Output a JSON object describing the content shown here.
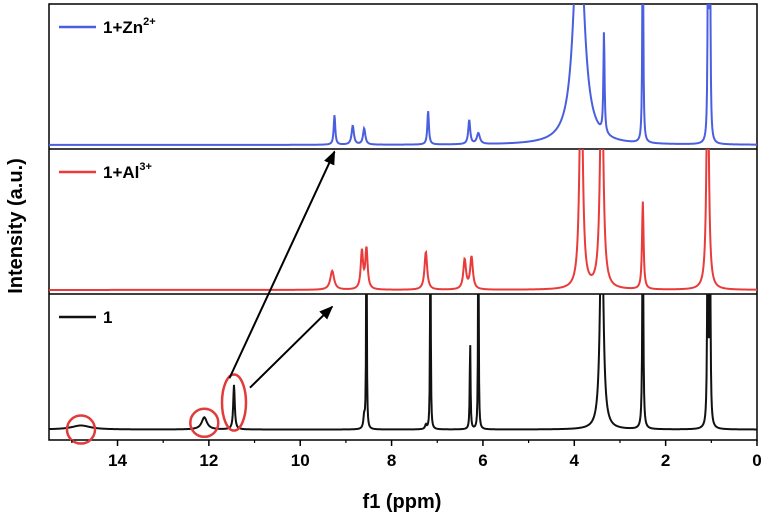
{
  "chart_data": {
    "type": "line",
    "title": "",
    "xlabel": "f1 (ppm)",
    "ylabel": "Intensity (a.u.)",
    "xlim": [
      15.5,
      0
    ],
    "x_reversed": true,
    "x_ticks": [
      14,
      12,
      10,
      8,
      6,
      4,
      2,
      0
    ],
    "x_tick_labels": [
      "14",
      "12",
      "10",
      "8",
      "6",
      "4",
      "2",
      "0"
    ],
    "grid": false,
    "legend_placement": "top-left of each panel",
    "series": [
      {
        "name": "1+Zn2+",
        "label_base": "1+Zn",
        "label_sup": "2+",
        "color": "#4a5fe0",
        "panel": "top",
        "baseline": 0.03,
        "peaks": [
          {
            "ppm": 9.25,
            "height": 0.22,
            "width": 0.02
          },
          {
            "ppm": 8.85,
            "height": 0.14,
            "width": 0.03
          },
          {
            "ppm": 8.6,
            "height": 0.12,
            "width": 0.03
          },
          {
            "ppm": 7.2,
            "height": 0.25,
            "width": 0.02
          },
          {
            "ppm": 6.3,
            "height": 0.18,
            "width": 0.025
          },
          {
            "ppm": 6.1,
            "height": 0.08,
            "width": 0.04
          },
          {
            "ppm": 3.9,
            "height": 1.8,
            "width": 0.13
          },
          {
            "ppm": 3.35,
            "height": 0.75,
            "width": 0.015
          },
          {
            "ppm": 2.5,
            "height": 1.8,
            "width": 0.012
          },
          {
            "ppm": 1.07,
            "height": 1.8,
            "width": 0.012
          },
          {
            "ppm": 1.03,
            "height": 1.8,
            "width": 0.012
          }
        ],
        "clip_top": 1.0
      },
      {
        "name": "1+Al3+",
        "label_base": "1+Al",
        "label_sup": "3+",
        "color": "#ea3b3b",
        "panel": "middle",
        "baseline": 0.03,
        "peaks": [
          {
            "ppm": 9.3,
            "height": 0.14,
            "width": 0.05
          },
          {
            "ppm": 8.65,
            "height": 0.28,
            "width": 0.03
          },
          {
            "ppm": 8.55,
            "height": 0.3,
            "width": 0.03
          },
          {
            "ppm": 7.25,
            "height": 0.28,
            "width": 0.035
          },
          {
            "ppm": 6.4,
            "height": 0.22,
            "width": 0.035
          },
          {
            "ppm": 6.25,
            "height": 0.24,
            "width": 0.035
          },
          {
            "ppm": 3.85,
            "height": 1.8,
            "width": 0.04
          },
          {
            "ppm": 3.4,
            "height": 1.8,
            "width": 0.04
          },
          {
            "ppm": 2.5,
            "height": 0.65,
            "width": 0.02
          },
          {
            "ppm": 1.08,
            "height": 1.8,
            "width": 0.03
          }
        ],
        "clip_top": 1.0
      },
      {
        "name": "1",
        "label_base": "1",
        "label_sup": "",
        "color": "#111111",
        "panel": "bottom",
        "baseline": 0.07,
        "peaks": [
          {
            "ppm": 14.8,
            "height": 0.03,
            "width": 0.25
          },
          {
            "ppm": 12.1,
            "height": 0.09,
            "width": 0.07
          },
          {
            "ppm": 11.45,
            "height": 0.33,
            "width": 0.02
          },
          {
            "ppm": 8.6,
            "height": 0.09,
            "width": 0.02
          },
          {
            "ppm": 8.55,
            "height": 1.8,
            "width": 0.008
          },
          {
            "ppm": 7.25,
            "height": 0.03,
            "width": 0.02
          },
          {
            "ppm": 7.15,
            "height": 1.8,
            "width": 0.008
          },
          {
            "ppm": 6.28,
            "height": 0.66,
            "width": 0.01
          },
          {
            "ppm": 6.1,
            "height": 1.8,
            "width": 0.008
          },
          {
            "ppm": 3.4,
            "height": 1.8,
            "width": 0.04
          },
          {
            "ppm": 2.5,
            "height": 1.8,
            "width": 0.012
          },
          {
            "ppm": 1.08,
            "height": 1.8,
            "width": 0.012
          },
          {
            "ppm": 1.03,
            "height": 1.8,
            "width": 0.012
          }
        ],
        "clip_top": 1.0
      }
    ],
    "annotations": {
      "circles": [
        {
          "ppm": 14.8,
          "panel": "bottom",
          "value": 0.07,
          "kind": "circle"
        },
        {
          "ppm": 12.1,
          "panel": "bottom",
          "value": 0.12,
          "kind": "circle"
        },
        {
          "ppm": 11.45,
          "panel": "bottom",
          "value": 0.27,
          "kind": "ellipse"
        }
      ],
      "arrows": [
        {
          "from": {
            "ppm": 11.55,
            "panel": "bottom",
            "value": 0.45
          },
          "to": {
            "ppm": 9.25,
            "panel": "top",
            "value": -0.02
          }
        },
        {
          "from": {
            "ppm": 11.1,
            "panel": "bottom",
            "value": 0.38
          },
          "to": {
            "ppm": 9.3,
            "panel": "bottom",
            "value": 0.98
          }
        }
      ]
    }
  }
}
